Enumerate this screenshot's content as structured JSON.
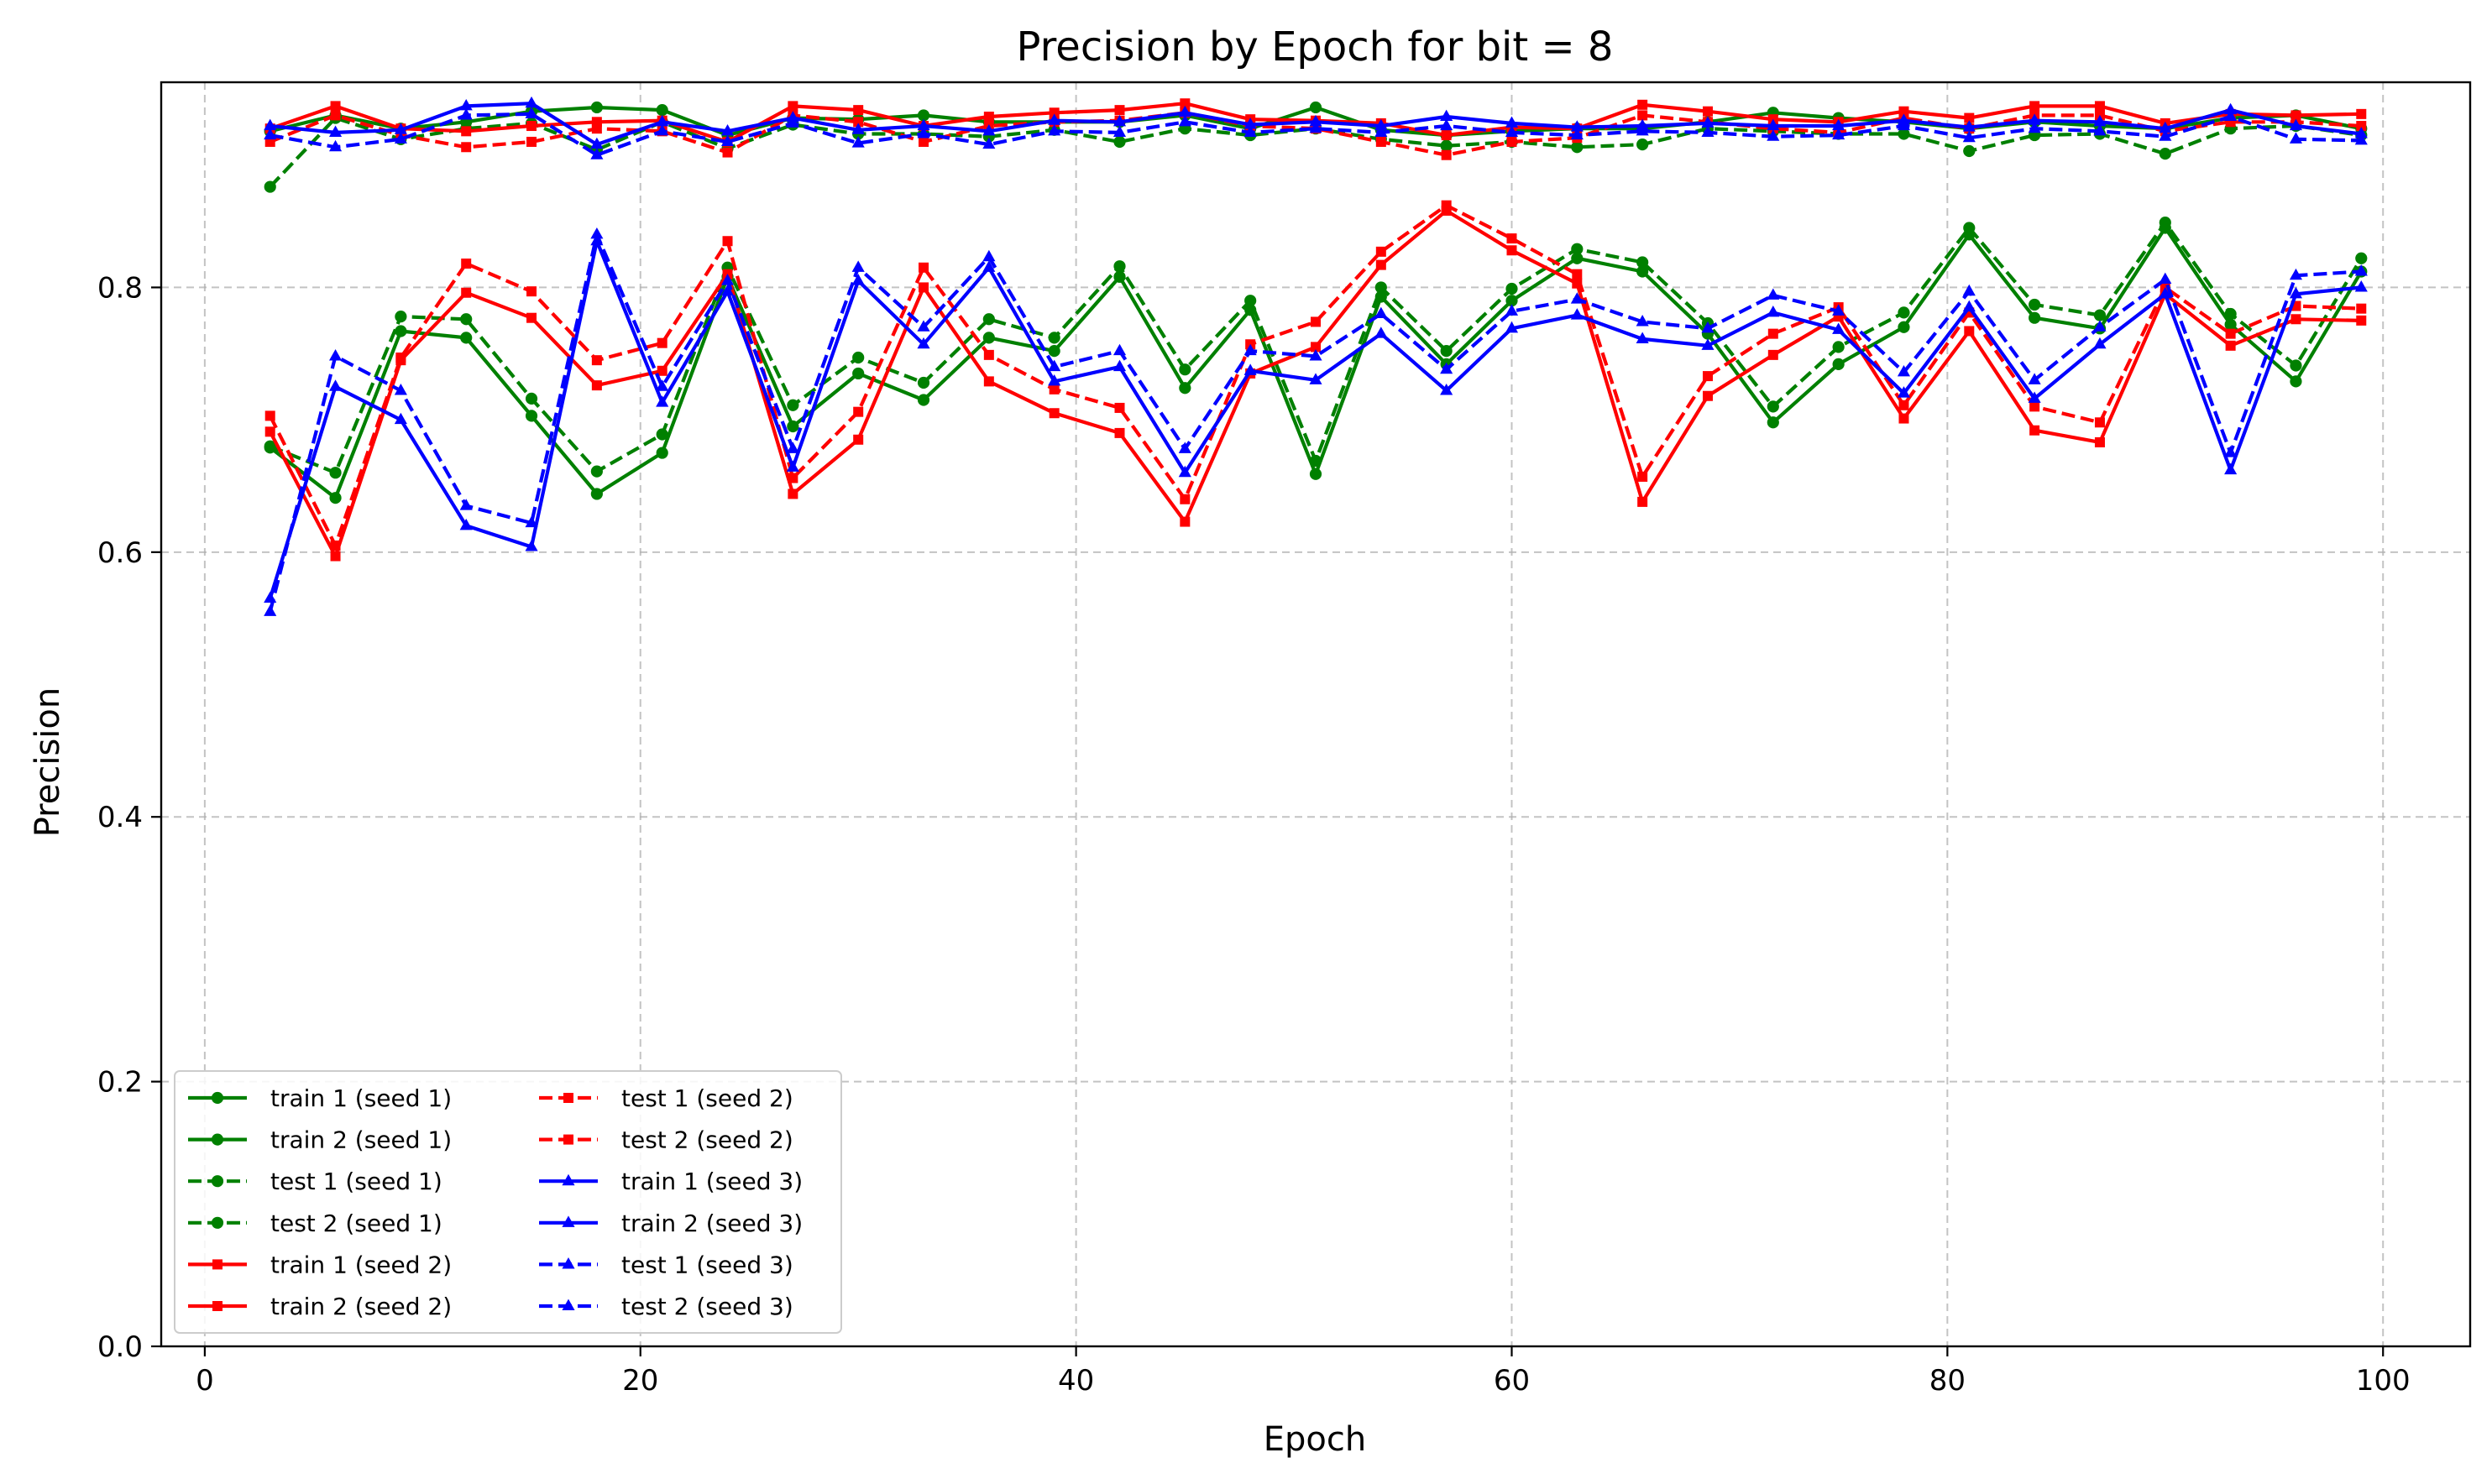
{
  "chart_data": {
    "type": "line",
    "title": "Precision by Epoch for bit = 8",
    "xlabel": "Epoch",
    "ylabel": "Precision",
    "xlim": [
      -2,
      104
    ],
    "ylim": [
      0.0,
      0.955
    ],
    "xticks": [
      0,
      20,
      40,
      60,
      80,
      100
    ],
    "xtick_labels": [
      "0",
      "20",
      "40",
      "60",
      "80",
      "100"
    ],
    "yticks": [
      0.0,
      0.2,
      0.4,
      0.6,
      0.8
    ],
    "ytick_labels": [
      "0.0",
      "0.2",
      "0.4",
      "0.6",
      "0.8"
    ],
    "grid": true,
    "legend": {
      "location": "lower-left",
      "columns": 2
    },
    "x": [
      3,
      6,
      9,
      12,
      15,
      18,
      21,
      24,
      27,
      30,
      33,
      36,
      39,
      42,
      45,
      48,
      51,
      54,
      57,
      60,
      63,
      66,
      69,
      72,
      75,
      78,
      81,
      84,
      87,
      90,
      93,
      96,
      99
    ],
    "series": [
      {
        "name": "train 1 (seed 1)",
        "color": "#008000",
        "dash": "solid",
        "marker": "circle",
        "values": [
          0.679,
          0.641,
          0.767,
          0.762,
          0.703,
          0.644,
          0.675,
          0.808,
          0.695,
          0.735,
          0.715,
          0.762,
          0.752,
          0.808,
          0.724,
          0.783,
          0.659,
          0.793,
          0.742,
          0.79,
          0.822,
          0.812,
          0.765,
          0.698,
          0.742,
          0.77,
          0.84,
          0.777,
          0.769,
          0.845,
          0.772,
          0.729,
          0.812
        ]
      },
      {
        "name": "train 2 (seed 1)",
        "color": "#008000",
        "dash": "solid",
        "marker": "circle",
        "values": [
          0.918,
          0.93,
          0.92,
          0.925,
          0.933,
          0.936,
          0.934,
          0.915,
          0.928,
          0.927,
          0.93,
          0.925,
          0.925,
          0.925,
          0.93,
          0.92,
          0.936,
          0.919,
          0.915,
          0.918,
          0.92,
          0.92,
          0.925,
          0.932,
          0.928,
          0.925,
          0.92,
          0.925,
          0.922,
          0.92,
          0.928,
          0.93,
          0.92
        ]
      },
      {
        "name": "test 1 (seed 1)",
        "color": "#008000",
        "dash": "dashed",
        "marker": "circle",
        "values": [
          0.68,
          0.66,
          0.778,
          0.776,
          0.716,
          0.661,
          0.689,
          0.815,
          0.711,
          0.747,
          0.728,
          0.776,
          0.762,
          0.816,
          0.738,
          0.79,
          0.669,
          0.8,
          0.752,
          0.799,
          0.829,
          0.819,
          0.773,
          0.71,
          0.755,
          0.781,
          0.845,
          0.787,
          0.779,
          0.849,
          0.78,
          0.741,
          0.822
        ]
      },
      {
        "name": "test 2 (seed 1)",
        "color": "#008000",
        "dash": "dashed",
        "marker": "circle",
        "values": [
          0.876,
          0.928,
          0.912,
          0.92,
          0.924,
          0.904,
          0.925,
          0.905,
          0.923,
          0.916,
          0.916,
          0.914,
          0.919,
          0.91,
          0.92,
          0.915,
          0.92,
          0.912,
          0.907,
          0.91,
          0.906,
          0.908,
          0.92,
          0.918,
          0.916,
          0.916,
          0.903,
          0.915,
          0.916,
          0.901,
          0.92,
          0.922,
          0.915
        ]
      },
      {
        "name": "train 1 (seed 2)",
        "color": "#ff0000",
        "dash": "solid",
        "marker": "square",
        "values": [
          0.691,
          0.597,
          0.745,
          0.796,
          0.777,
          0.726,
          0.737,
          0.81,
          0.644,
          0.685,
          0.8,
          0.729,
          0.705,
          0.69,
          0.623,
          0.735,
          0.755,
          0.817,
          0.858,
          0.828,
          0.803,
          0.638,
          0.718,
          0.749,
          0.778,
          0.701,
          0.767,
          0.692,
          0.683,
          0.795,
          0.756,
          0.776,
          0.775
        ]
      },
      {
        "name": "train 2 (seed 2)",
        "color": "#ff0000",
        "dash": "solid",
        "marker": "square",
        "values": [
          0.92,
          0.937,
          0.92,
          0.918,
          0.922,
          0.925,
          0.926,
          0.91,
          0.937,
          0.934,
          0.922,
          0.929,
          0.932,
          0.934,
          0.939,
          0.927,
          0.926,
          0.924,
          0.915,
          0.921,
          0.92,
          0.938,
          0.933,
          0.927,
          0.925,
          0.933,
          0.928,
          0.937,
          0.937,
          0.924,
          0.931,
          0.93,
          0.931
        ]
      },
      {
        "name": "test 1 (seed 2)",
        "color": "#ff0000",
        "dash": "dashed",
        "marker": "square",
        "values": [
          0.703,
          0.605,
          0.747,
          0.818,
          0.797,
          0.745,
          0.758,
          0.835,
          0.656,
          0.706,
          0.815,
          0.749,
          0.723,
          0.709,
          0.64,
          0.757,
          0.774,
          0.827,
          0.862,
          0.837,
          0.81,
          0.657,
          0.733,
          0.765,
          0.785,
          0.711,
          0.781,
          0.71,
          0.698,
          0.8,
          0.765,
          0.786,
          0.784
        ]
      },
      {
        "name": "test 2 (seed 2)",
        "color": "#ff0000",
        "dash": "dashed",
        "marker": "square",
        "values": [
          0.91,
          0.93,
          0.915,
          0.906,
          0.91,
          0.92,
          0.918,
          0.902,
          0.93,
          0.925,
          0.91,
          0.922,
          0.925,
          0.926,
          0.932,
          0.922,
          0.92,
          0.91,
          0.9,
          0.91,
          0.913,
          0.93,
          0.925,
          0.92,
          0.917,
          0.928,
          0.92,
          0.93,
          0.93,
          0.918,
          0.925,
          0.925,
          0.922
        ]
      },
      {
        "name": "train 1 (seed 3)",
        "color": "#0000ff",
        "dash": "solid",
        "marker": "triangle",
        "values": [
          0.565,
          0.725,
          0.7,
          0.62,
          0.604,
          0.835,
          0.713,
          0.797,
          0.664,
          0.805,
          0.757,
          0.815,
          0.729,
          0.74,
          0.66,
          0.737,
          0.73,
          0.765,
          0.722,
          0.769,
          0.779,
          0.761,
          0.756,
          0.781,
          0.768,
          0.72,
          0.785,
          0.716,
          0.757,
          0.795,
          0.662,
          0.795,
          0.8
        ]
      },
      {
        "name": "train 2 (seed 3)",
        "color": "#0000ff",
        "dash": "solid",
        "marker": "triangle",
        "values": [
          0.922,
          0.917,
          0.919,
          0.937,
          0.939,
          0.908,
          0.925,
          0.918,
          0.928,
          0.919,
          0.922,
          0.918,
          0.926,
          0.925,
          0.932,
          0.923,
          0.925,
          0.922,
          0.929,
          0.924,
          0.921,
          0.922,
          0.924,
          0.922,
          0.922,
          0.926,
          0.921,
          0.926,
          0.925,
          0.92,
          0.934,
          0.922,
          0.916
        ]
      },
      {
        "name": "test 1 (seed 3)",
        "color": "#0000ff",
        "dash": "dashed",
        "marker": "triangle",
        "values": [
          0.555,
          0.748,
          0.722,
          0.635,
          0.622,
          0.84,
          0.725,
          0.805,
          0.678,
          0.815,
          0.77,
          0.823,
          0.74,
          0.752,
          0.678,
          0.752,
          0.748,
          0.78,
          0.738,
          0.782,
          0.791,
          0.774,
          0.769,
          0.794,
          0.782,
          0.736,
          0.797,
          0.73,
          0.77,
          0.806,
          0.675,
          0.809,
          0.812
        ]
      },
      {
        "name": "test 2 (seed 3)",
        "color": "#0000ff",
        "dash": "dashed",
        "marker": "triangle",
        "values": [
          0.915,
          0.906,
          0.912,
          0.93,
          0.931,
          0.9,
          0.918,
          0.91,
          0.924,
          0.909,
          0.916,
          0.908,
          0.918,
          0.917,
          0.925,
          0.917,
          0.92,
          0.917,
          0.922,
          0.917,
          0.915,
          0.918,
          0.917,
          0.914,
          0.915,
          0.922,
          0.913,
          0.92,
          0.918,
          0.914,
          0.929,
          0.912,
          0.911
        ]
      }
    ]
  }
}
